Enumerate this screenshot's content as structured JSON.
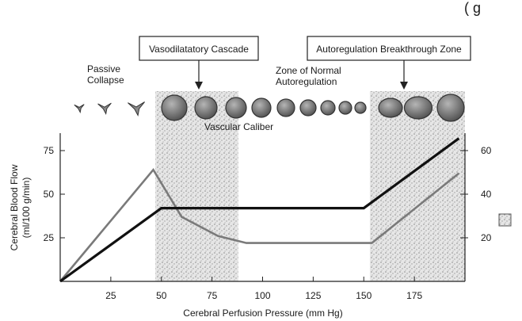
{
  "corner_text": "( g",
  "callouts": {
    "vasodilatory": "Vasodilatatory Cascade",
    "breakthrough": "Autoregulation Breakthrough Zone"
  },
  "labels": {
    "passive_line1": "Passive",
    "passive_line2": "Collapse",
    "normal_line1": "Zone of Normal",
    "normal_line2": "Autoregulation",
    "vascular_caliber": "Vascular Caliber"
  },
  "colors": {
    "cbf_line": "#111111",
    "second_line": "#7a7a7a",
    "stipple": "#cfcfcf",
    "vessel_fill": "#8a8a8a"
  },
  "chart_data": {
    "type": "line",
    "xlabel": "Cerebral Perfusion Pressure (mm Hg)",
    "ylabel_left_line1": "Cerebral Blood Flow",
    "ylabel_left_line2": "(ml/100 g/min)",
    "xlim": [
      0,
      200
    ],
    "ylim_left": [
      0,
      100
    ],
    "ylim_right": [
      0,
      80
    ],
    "x_ticks": [
      25,
      50,
      75,
      100,
      125,
      150,
      175
    ],
    "x_tick_labels": [
      "25",
      "50",
      "75",
      "100",
      "125",
      "150",
      "175"
    ],
    "y_left_ticks": [
      25,
      50,
      75
    ],
    "y_left_tick_labels": [
      "25",
      "50",
      "75"
    ],
    "y_right_ticks": [
      20,
      40,
      60
    ],
    "y_right_tick_labels": [
      "20",
      "40",
      "60"
    ],
    "shaded_ranges": [
      [
        47,
        88
      ],
      [
        153,
        200
      ]
    ],
    "series": [
      {
        "axis": "left",
        "color": "#111111",
        "x": [
          0,
          50,
          150,
          197
        ],
        "y": [
          0,
          42,
          42,
          82
        ]
      },
      {
        "axis": "left",
        "color": "#7a7a7a",
        "x": [
          0,
          46,
          60,
          78,
          92,
          150,
          154,
          197
        ],
        "y": [
          0,
          64,
          37,
          26,
          22,
          22,
          22,
          62
        ]
      }
    ],
    "vessels": [
      {
        "shape": "collapsed",
        "size": 1
      },
      {
        "shape": "collapsed",
        "size": 2
      },
      {
        "shape": "collapsed",
        "size": 3
      },
      {
        "shape": "circle",
        "size": 16
      },
      {
        "shape": "circle",
        "size": 14
      },
      {
        "shape": "circle",
        "size": 13
      },
      {
        "shape": "circle",
        "size": 12
      },
      {
        "shape": "circle",
        "size": 11
      },
      {
        "shape": "circle",
        "size": 10
      },
      {
        "shape": "circle",
        "size": 9
      },
      {
        "shape": "circle",
        "size": 8
      },
      {
        "shape": "circle",
        "size": 7
      },
      {
        "shape": "ellipse",
        "size": 12
      },
      {
        "shape": "ellipse",
        "size": 14
      },
      {
        "shape": "circle",
        "size": 17
      }
    ]
  }
}
